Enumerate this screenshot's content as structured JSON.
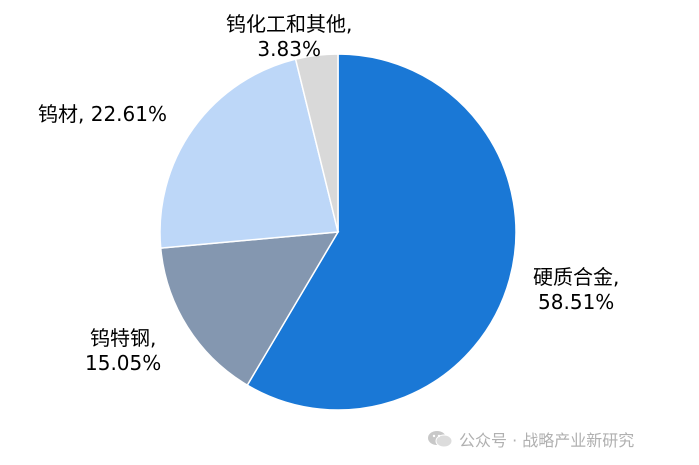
{
  "chart_data": {
    "type": "pie",
    "title": "",
    "slices": [
      {
        "label": "硬质合金,",
        "value": 58.51,
        "value_text": "58.51%",
        "color": "#1a78d6"
      },
      {
        "label": "钨特钢,",
        "value": 15.05,
        "value_text": "15.05%",
        "color": "#8497b0"
      },
      {
        "label": "钨材, 22.61%",
        "value": 22.61,
        "value_text": "",
        "color": "#bdd7f8"
      },
      {
        "label": "钨化工和其他,",
        "value": 3.83,
        "value_text": "3.83%",
        "color": "#d9d9d9"
      }
    ],
    "start_angle_deg": 0,
    "direction": "clockwise"
  },
  "watermark": {
    "icon": "wechat-icon",
    "text": "公众号 · 战略产业新研究"
  }
}
